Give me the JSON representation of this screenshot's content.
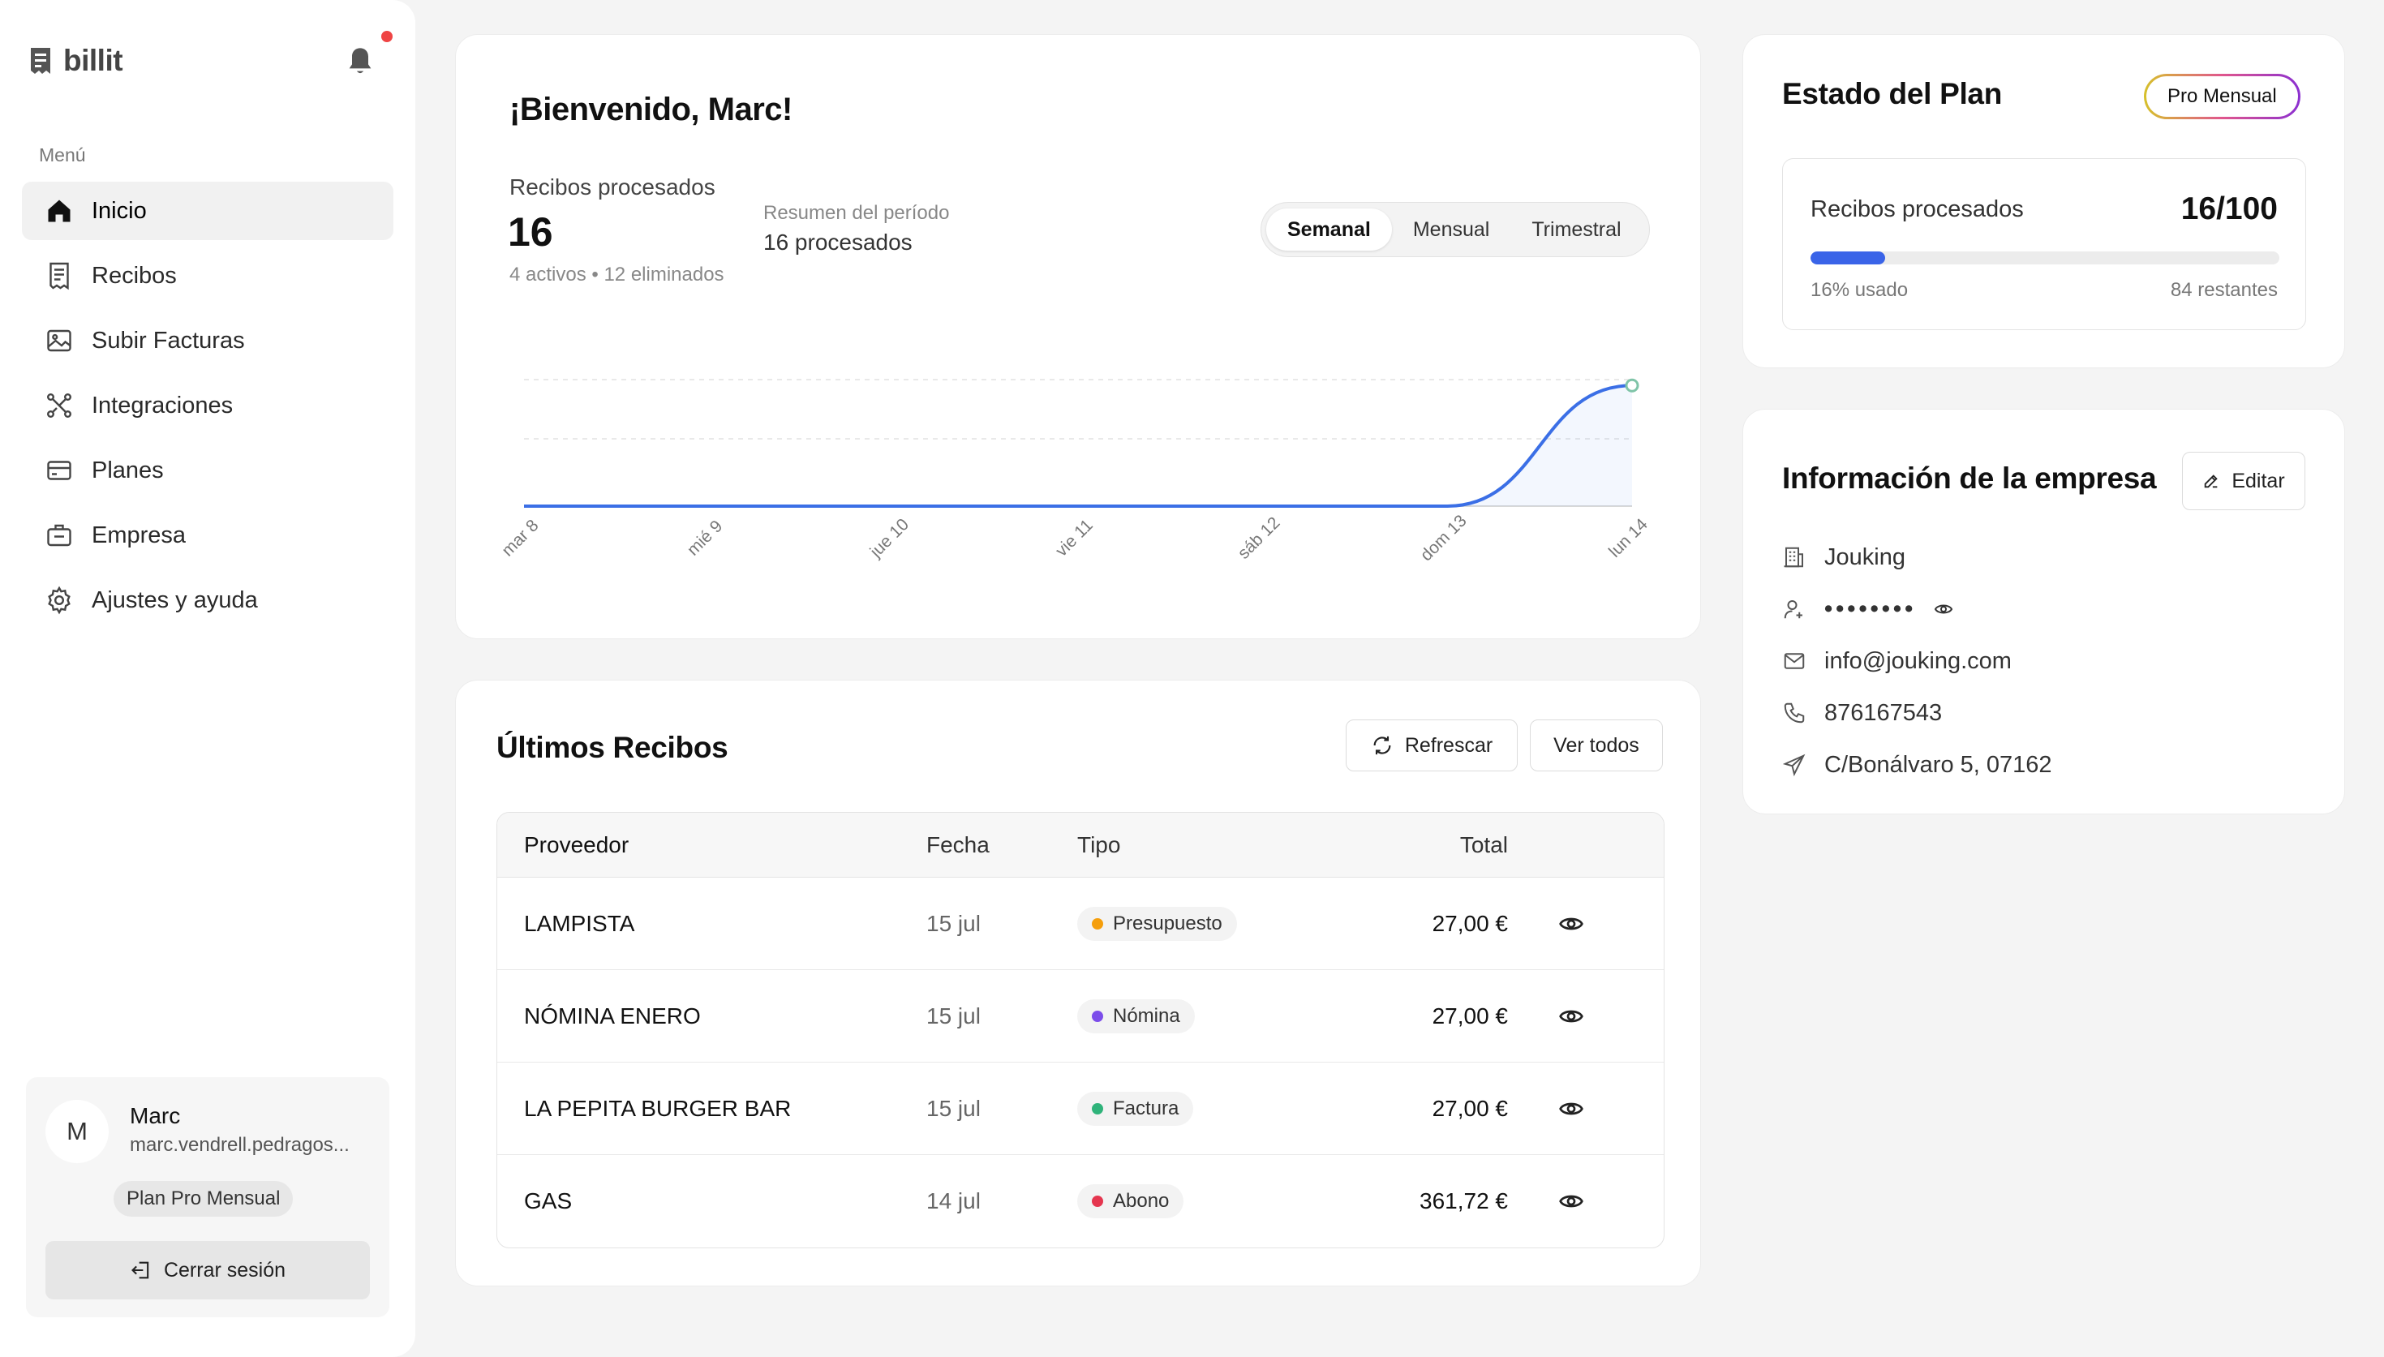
{
  "brand": {
    "name": "billit"
  },
  "sidebar": {
    "menu_label": "Menú",
    "items": [
      {
        "label": "Inicio",
        "icon": "home-icon",
        "active": true
      },
      {
        "label": "Recibos",
        "icon": "receipt-icon"
      },
      {
        "label": "Subir Facturas",
        "icon": "image-icon"
      },
      {
        "label": "Integraciones",
        "icon": "integrations-icon"
      },
      {
        "label": "Planes",
        "icon": "card-icon"
      },
      {
        "label": "Empresa",
        "icon": "briefcase-icon"
      },
      {
        "label": "Ajustes y ayuda",
        "icon": "gear-icon"
      }
    ]
  },
  "user": {
    "initial": "M",
    "name": "Marc",
    "email": "marc.vendrell.pedragos...",
    "plan": "Plan Pro Mensual",
    "logout_label": "Cerrar sesión"
  },
  "welcome": {
    "title": "¡Bienvenido, Marc!",
    "stat_label": "Recibos procesados",
    "stat_value": "16",
    "stat_sub": "4 activos • 12 eliminados",
    "period_label": "Resumen del período",
    "period_value": "16 procesados",
    "tabs": [
      "Semanal",
      "Mensual",
      "Trimestral"
    ],
    "active_tab": "Semanal"
  },
  "chart_data": {
    "type": "area",
    "categories": [
      "mar 8",
      "mié 9",
      "jue 10",
      "vie 11",
      "sáb 12",
      "dom 13",
      "lun 14"
    ],
    "values": [
      0,
      0,
      0,
      0,
      0,
      0,
      16
    ],
    "ylim": [
      0,
      20
    ],
    "title": "",
    "xlabel": "",
    "ylabel": "",
    "grid": true,
    "color": "#3b6fe6"
  },
  "receipts": {
    "title": "Últimos Recibos",
    "refresh_label": "Refrescar",
    "view_all_label": "Ver todos",
    "columns": {
      "provider": "Proveedor",
      "date": "Fecha",
      "type": "Tipo",
      "total": "Total"
    },
    "rows": [
      {
        "provider": "LAMPISTA",
        "date": "15 jul",
        "type": "Presupuesto",
        "type_color": "#f59e0b",
        "total": "27,00 €"
      },
      {
        "provider": "NÓMINA ENERO",
        "date": "15 jul",
        "type": "Nómina",
        "type_color": "#7c4dea",
        "total": "27,00 €"
      },
      {
        "provider": "LA PEPITA BURGER BAR",
        "date": "15 jul",
        "type": "Factura",
        "type_color": "#2fb37a",
        "total": "27,00 €"
      },
      {
        "provider": "GAS",
        "date": "14 jul",
        "type": "Abono",
        "type_color": "#e5364f",
        "total": "361,72 €"
      }
    ]
  },
  "plan": {
    "title": "Estado del Plan",
    "badge": "Pro Mensual",
    "usage_label": "Recibos procesados",
    "usage_value": "16/100",
    "usage_fraction": 0.16,
    "used_text": "16% usado",
    "remaining_text": "84 restantes"
  },
  "company": {
    "title": "Información de la empresa",
    "edit_label": "Editar",
    "name": "Jouking",
    "masked_id": "••••••••",
    "email": "info@jouking.com",
    "phone": "876167543",
    "address": "C/Bonálvaro 5, 07162"
  }
}
